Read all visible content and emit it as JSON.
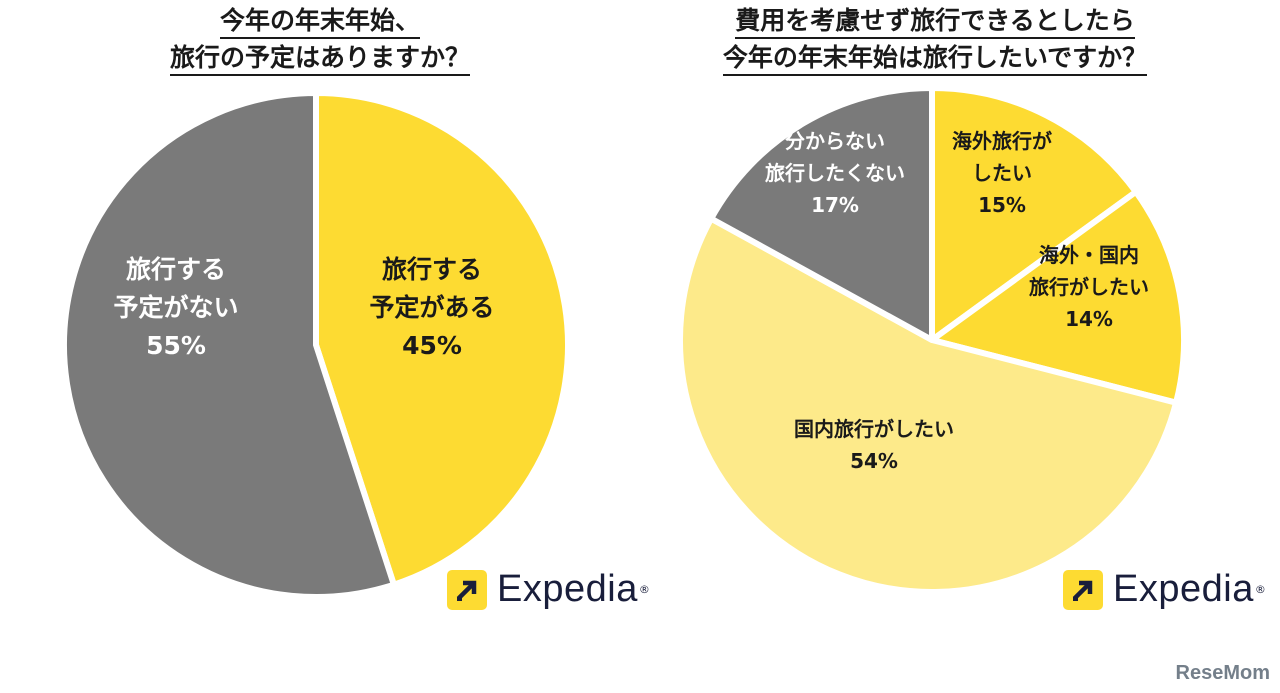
{
  "colors": {
    "yellow": "#fddb32",
    "light_yellow": "#fdea8a",
    "gray": "#7a7a7a",
    "label_dark": "#1a1a1a",
    "label_light": "#ffffff",
    "border": "#ffffff"
  },
  "brand": {
    "name": "Expedia",
    "reg": "®",
    "watermark": "ReseMom"
  },
  "chart_data": [
    {
      "type": "pie",
      "title_lines": [
        "今年の年末年始、",
        "旅行の予定はありますか？"
      ],
      "slices": [
        {
          "label_lines": [
            "旅行する",
            "予定がある"
          ],
          "value": 45,
          "value_text": "45%",
          "color": "#fddb32"
        },
        {
          "label_lines": [
            "旅行する",
            "予定がない"
          ],
          "value": 55,
          "value_text": "55%",
          "color": "#7a7a7a"
        }
      ]
    },
    {
      "type": "pie",
      "title_lines": [
        "費用を考慮せず旅行できるとしたら",
        "今年の年末年始は旅行したいですか？"
      ],
      "slices": [
        {
          "label_lines": [
            "海外旅行が",
            "したい"
          ],
          "value": 15,
          "value_text": "15%",
          "color": "#fddb32"
        },
        {
          "label_lines": [
            "海外・国内",
            "旅行がしたい"
          ],
          "value": 14,
          "value_text": "14%",
          "color": "#fddb32"
        },
        {
          "label_lines": [
            "国内旅行がしたい"
          ],
          "value": 54,
          "value_text": "54%",
          "color": "#fdea8a"
        },
        {
          "label_lines": [
            "分からない",
            "旅行したくない"
          ],
          "value": 17,
          "value_text": "17%",
          "color": "#7a7a7a"
        }
      ]
    }
  ]
}
